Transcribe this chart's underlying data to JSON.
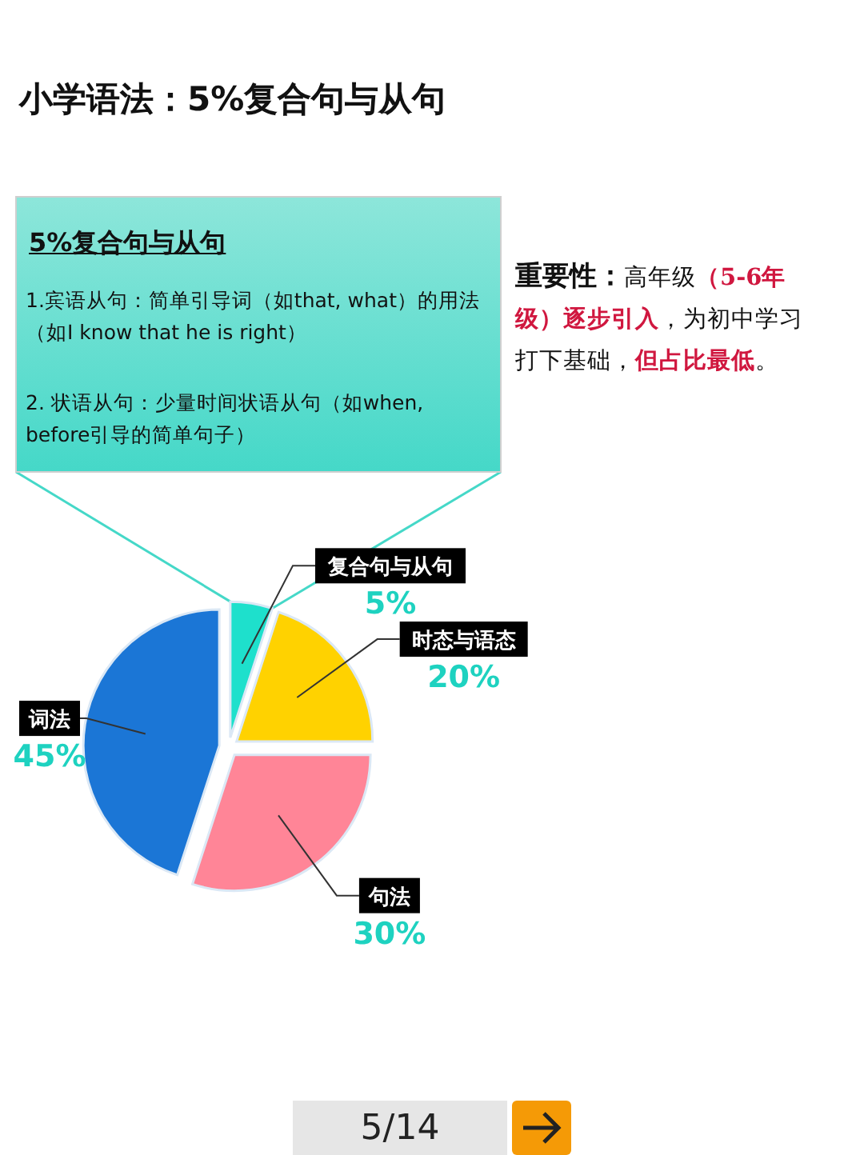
{
  "chart_data": {
    "type": "pie",
    "title": "小学语法：5%复合句与从句",
    "categories": [
      "复合句与从句",
      "时态与语态",
      "句法",
      "词法"
    ],
    "values": [
      5,
      20,
      30,
      45
    ],
    "colors": [
      "#1ee0cc",
      "#ffd200",
      "#ff8597",
      "#1b76d6"
    ],
    "value_labels": [
      "5%",
      "20%",
      "30%",
      "45%"
    ],
    "annotations": [
      "5%复合句与从句",
      "1.宾语从句：简单引导词（如that, what）的用法（如I know that he is right）",
      "2. 状语从句：少量时间状语从句（如when, before引导的简单句子）",
      "重要性：",
      "高年级",
      "（5-6年级）逐步引入",
      "，为初中学习打下基础，",
      "但占比最低",
      "。",
      "5/14"
    ]
  }
}
